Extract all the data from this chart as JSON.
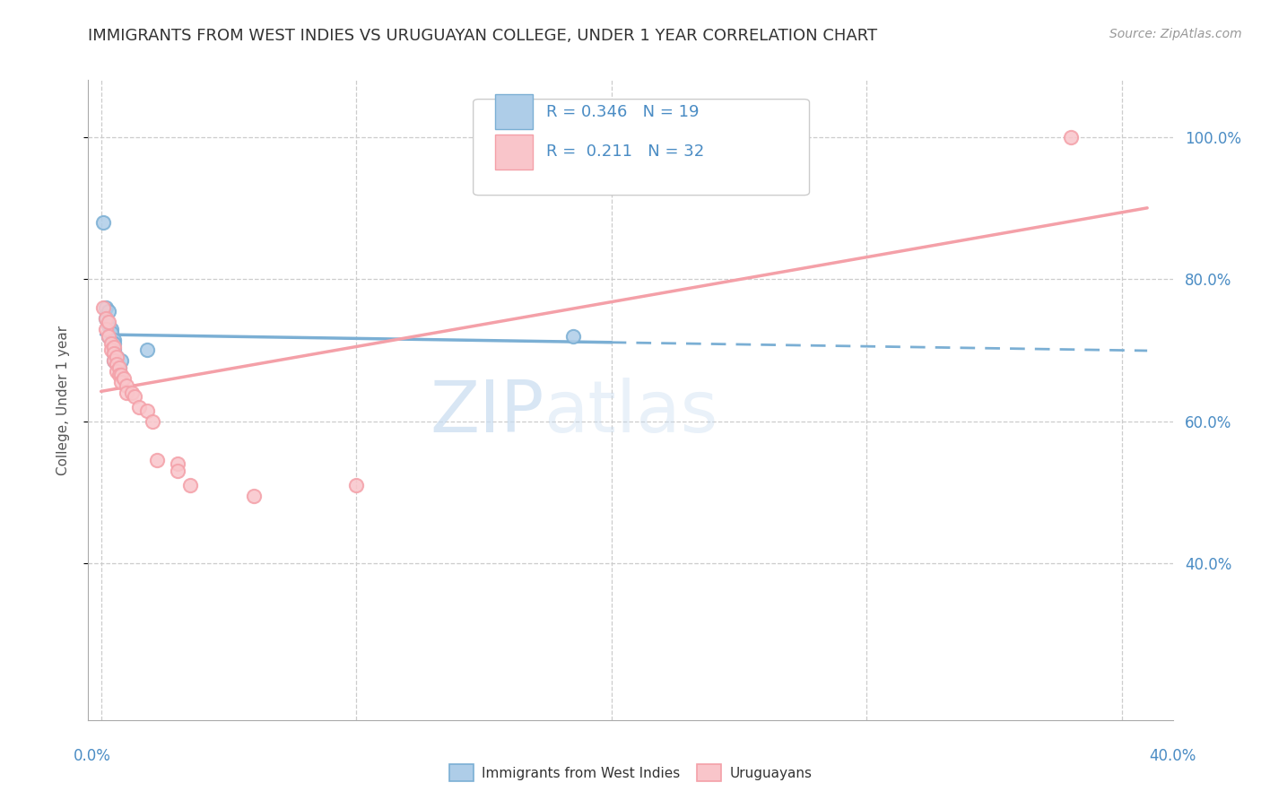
{
  "title": "IMMIGRANTS FROM WEST INDIES VS URUGUAYAN COLLEGE, UNDER 1 YEAR CORRELATION CHART",
  "source": "Source: ZipAtlas.com",
  "ylabel": "College, Under 1 year",
  "legend_label1": "Immigrants from West Indies",
  "legend_label2": "Uruguayans",
  "r1": 0.346,
  "n1": 19,
  "r2": 0.211,
  "n2": 32,
  "color_blue": "#7BAFD4",
  "color_pink": "#F4A0A8",
  "color_blue_light": "#AECDE8",
  "color_pink_light": "#F9C5CA",
  "scatter_blue": [
    [
      0.001,
      0.88
    ],
    [
      0.002,
      0.76
    ],
    [
      0.002,
      0.745
    ],
    [
      0.003,
      0.755
    ],
    [
      0.003,
      0.735
    ],
    [
      0.003,
      0.72
    ],
    [
      0.004,
      0.73
    ],
    [
      0.004,
      0.725
    ],
    [
      0.005,
      0.715
    ],
    [
      0.005,
      0.71
    ],
    [
      0.005,
      0.7
    ],
    [
      0.005,
      0.695
    ],
    [
      0.005,
      0.685
    ],
    [
      0.006,
      0.69
    ],
    [
      0.006,
      0.68
    ],
    [
      0.007,
      0.675
    ],
    [
      0.008,
      0.685
    ],
    [
      0.018,
      0.7
    ],
    [
      0.185,
      0.72
    ]
  ],
  "scatter_pink": [
    [
      0.001,
      0.76
    ],
    [
      0.002,
      0.745
    ],
    [
      0.002,
      0.73
    ],
    [
      0.003,
      0.74
    ],
    [
      0.003,
      0.72
    ],
    [
      0.004,
      0.71
    ],
    [
      0.004,
      0.7
    ],
    [
      0.005,
      0.705
    ],
    [
      0.005,
      0.695
    ],
    [
      0.005,
      0.685
    ],
    [
      0.006,
      0.69
    ],
    [
      0.006,
      0.68
    ],
    [
      0.006,
      0.67
    ],
    [
      0.007,
      0.675
    ],
    [
      0.007,
      0.665
    ],
    [
      0.008,
      0.665
    ],
    [
      0.008,
      0.655
    ],
    [
      0.009,
      0.66
    ],
    [
      0.01,
      0.65
    ],
    [
      0.01,
      0.64
    ],
    [
      0.012,
      0.64
    ],
    [
      0.013,
      0.635
    ],
    [
      0.015,
      0.62
    ],
    [
      0.018,
      0.615
    ],
    [
      0.02,
      0.6
    ],
    [
      0.022,
      0.545
    ],
    [
      0.03,
      0.54
    ],
    [
      0.03,
      0.53
    ],
    [
      0.035,
      0.51
    ],
    [
      0.06,
      0.495
    ],
    [
      0.1,
      0.51
    ],
    [
      0.38,
      1.0
    ]
  ],
  "xmin": -0.005,
  "xmax": 0.42,
  "ymin": 0.18,
  "ymax": 1.08,
  "yticks": [
    0.4,
    0.6,
    0.8,
    1.0
  ],
  "ytick_labels": [
    "40.0%",
    "60.0%",
    "80.0%",
    "100.0%"
  ],
  "watermark_zip": "ZIP",
  "watermark_atlas": "atlas",
  "background_color": "#FFFFFF",
  "grid_color": "#CCCCCC",
  "grid_style": "--"
}
